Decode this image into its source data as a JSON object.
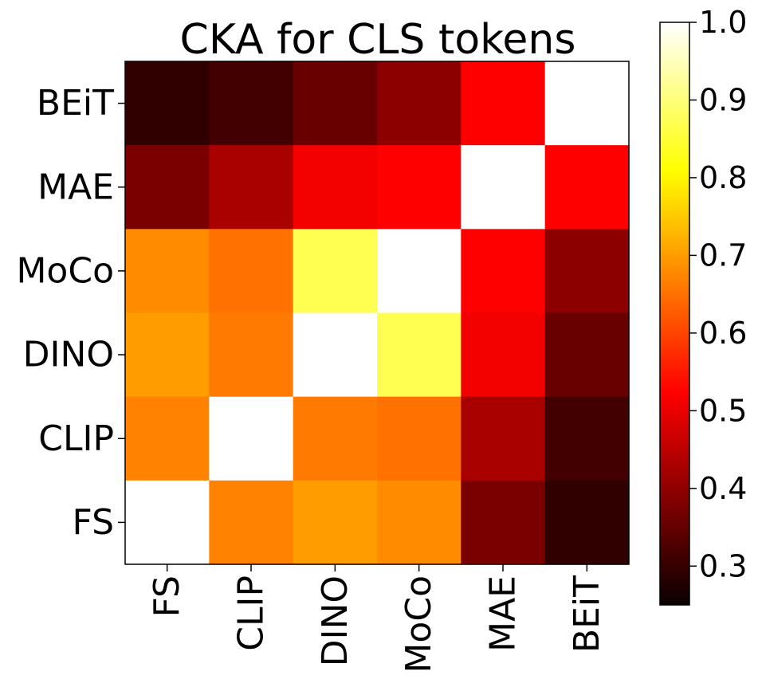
{
  "chart_data": {
    "type": "heatmap",
    "title": "CKA for CLS tokens",
    "x_labels": [
      "FS",
      "CLIP",
      "DINO",
      "MoCo",
      "MAE",
      "BEiT"
    ],
    "y_labels": [
      "BEiT",
      "MAE",
      "MoCo",
      "DINO",
      "CLIP",
      "FS"
    ],
    "values": [
      [
        0.27,
        0.29,
        0.33,
        0.37,
        0.51,
        1.0
      ],
      [
        0.35,
        0.4,
        0.48,
        0.5,
        1.0,
        0.51
      ],
      [
        0.68,
        0.65,
        0.87,
        1.0,
        0.5,
        0.37
      ],
      [
        0.7,
        0.66,
        1.0,
        0.87,
        0.48,
        0.33
      ],
      [
        0.67,
        1.0,
        0.66,
        0.65,
        0.4,
        0.29
      ],
      [
        1.0,
        0.67,
        0.7,
        0.68,
        0.35,
        0.27
      ]
    ],
    "colorbar": {
      "min": 0.25,
      "max": 1.0,
      "ticks": [
        "0.3",
        "0.4",
        "0.5",
        "0.6",
        "0.7",
        "0.8",
        "0.9",
        "1.0"
      ],
      "colormap": "hot"
    },
    "xlabel": "",
    "ylabel": ""
  }
}
